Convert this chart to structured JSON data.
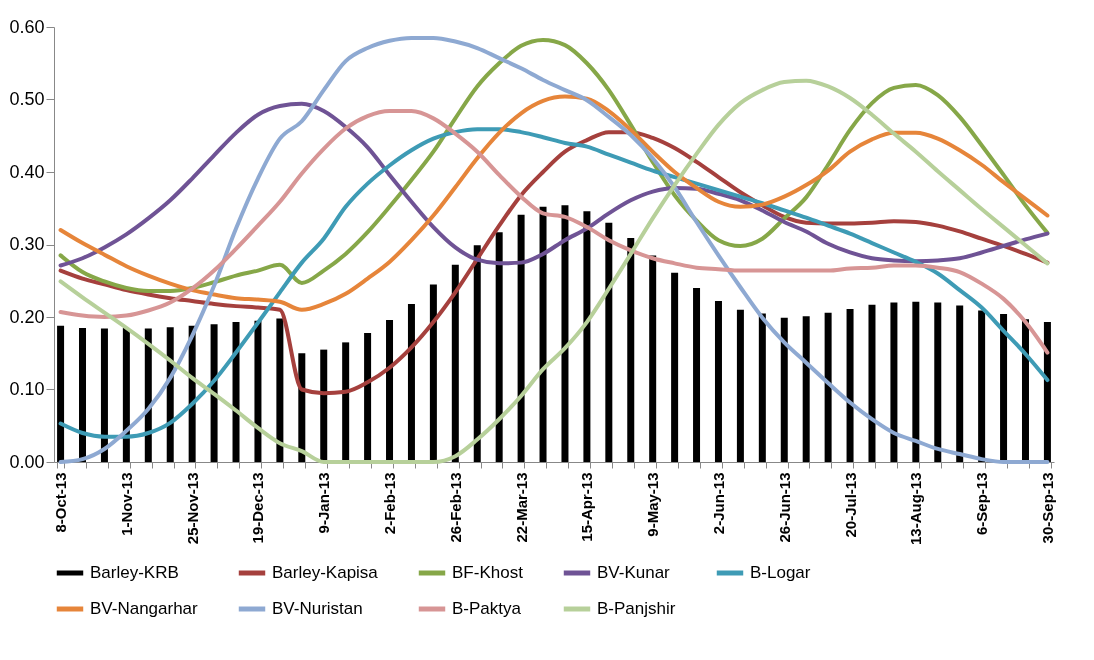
{
  "chart_data": {
    "type": "bar",
    "categories": [
      "8-Oct-13",
      null,
      null,
      "1-Nov-13",
      null,
      null,
      "25-Nov-13",
      null,
      null,
      "19-Dec-13",
      null,
      null,
      "9-Jan-13",
      null,
      null,
      "2-Feb-13",
      null,
      null,
      "26-Feb-13",
      null,
      null,
      "22-Mar-13",
      null,
      null,
      "15-Apr-13",
      null,
      null,
      "9-May-13",
      null,
      null,
      "2-Jun-13",
      null,
      null,
      "26-Jun-13",
      null,
      null,
      "20-Jul-13",
      null,
      null,
      "13-Aug-13",
      null,
      null,
      "6-Sep-13",
      null,
      null,
      "30-Sep-13"
    ],
    "series": [
      {
        "name": "Barley-KRB",
        "type": "bar",
        "color": "#000000",
        "values": [
          0.188,
          0.185,
          0.184,
          0.185,
          0.184,
          0.186,
          0.188,
          0.19,
          0.193,
          0.195,
          0.198,
          0.15,
          0.155,
          0.165,
          0.178,
          0.196,
          0.218,
          0.245,
          0.272,
          0.299,
          0.317,
          0.341,
          0.352,
          0.354,
          0.346,
          0.33,
          0.309,
          0.285,
          0.261,
          0.24,
          0.222,
          0.21,
          0.205,
          0.199,
          0.201,
          0.206,
          0.211,
          0.217,
          0.22,
          0.221,
          0.22,
          0.216,
          0.209,
          0.204,
          0.197,
          0.193
        ]
      },
      {
        "name": "Barley-Kapisa",
        "type": "line",
        "color": "#a5403d",
        "values": [
          0.264,
          0.253,
          0.245,
          0.237,
          0.231,
          0.226,
          0.222,
          0.218,
          0.215,
          0.213,
          0.21,
          0.1,
          0.095,
          0.097,
          0.11,
          0.13,
          0.158,
          0.193,
          0.234,
          0.28,
          0.326,
          0.368,
          0.4,
          0.428,
          0.444,
          0.455,
          0.455,
          0.447,
          0.433,
          0.414,
          0.393,
          0.372,
          0.354,
          0.338,
          0.33,
          0.329,
          0.329,
          0.33,
          0.332,
          0.331,
          0.326,
          0.318,
          0.308,
          0.298,
          0.287,
          0.275
        ]
      },
      {
        "name": "BF-Khost",
        "type": "line",
        "color": "#86a748",
        "values": [
          0.285,
          0.262,
          0.249,
          0.24,
          0.236,
          0.236,
          0.24,
          0.248,
          0.257,
          0.264,
          0.272,
          0.247,
          0.264,
          0.287,
          0.317,
          0.352,
          0.389,
          0.428,
          0.474,
          0.518,
          0.55,
          0.574,
          0.582,
          0.575,
          0.55,
          0.513,
          0.465,
          0.414,
          0.368,
          0.333,
          0.306,
          0.298,
          0.308,
          0.336,
          0.365,
          0.41,
          0.458,
          0.495,
          0.516,
          0.52,
          0.506,
          0.476,
          0.437,
          0.396,
          0.354,
          0.316
        ]
      },
      {
        "name": "BV-Kunar",
        "type": "line",
        "color": "#6f5395",
        "values": [
          0.271,
          0.281,
          0.296,
          0.314,
          0.336,
          0.361,
          0.391,
          0.423,
          0.454,
          0.479,
          0.491,
          0.494,
          0.484,
          0.462,
          0.434,
          0.396,
          0.359,
          0.324,
          0.296,
          0.279,
          0.274,
          0.275,
          0.287,
          0.306,
          0.322,
          0.343,
          0.361,
          0.373,
          0.378,
          0.377,
          0.37,
          0.361,
          0.347,
          0.331,
          0.318,
          0.301,
          0.289,
          0.281,
          0.278,
          0.277,
          0.278,
          0.281,
          0.289,
          0.298,
          0.307,
          0.315
        ]
      },
      {
        "name": "B-Logar",
        "type": "line",
        "color": "#3e9bb5",
        "values": [
          0.053,
          0.04,
          0.035,
          0.035,
          0.04,
          0.054,
          0.08,
          0.112,
          0.151,
          0.192,
          0.234,
          0.275,
          0.308,
          0.352,
          0.384,
          0.409,
          0.43,
          0.446,
          0.455,
          0.459,
          0.459,
          0.455,
          0.448,
          0.44,
          0.435,
          0.424,
          0.413,
          0.402,
          0.393,
          0.384,
          0.375,
          0.366,
          0.357,
          0.347,
          0.337,
          0.326,
          0.315,
          0.302,
          0.289,
          0.276,
          0.26,
          0.237,
          0.213,
          0.181,
          0.149,
          0.113
        ]
      },
      {
        "name": "BV-Nangarhar",
        "type": "line",
        "color": "#e6853a",
        "values": [
          0.32,
          0.302,
          0.286,
          0.27,
          0.257,
          0.246,
          0.237,
          0.231,
          0.226,
          0.224,
          0.221,
          0.21,
          0.218,
          0.232,
          0.253,
          0.276,
          0.306,
          0.34,
          0.379,
          0.419,
          0.454,
          0.481,
          0.498,
          0.504,
          0.501,
          0.484,
          0.458,
          0.428,
          0.4,
          0.378,
          0.359,
          0.352,
          0.355,
          0.366,
          0.382,
          0.402,
          0.428,
          0.445,
          0.454,
          0.454,
          0.446,
          0.43,
          0.41,
          0.386,
          0.363,
          0.34
        ]
      },
      {
        "name": "BV-Nuristan",
        "type": "line",
        "color": "#8ea9d2",
        "values": [
          0.0,
          0.004,
          0.018,
          0.043,
          0.073,
          0.116,
          0.174,
          0.243,
          0.322,
          0.391,
          0.446,
          0.47,
          0.513,
          0.553,
          0.571,
          0.581,
          0.585,
          0.585,
          0.58,
          0.571,
          0.557,
          0.543,
          0.527,
          0.513,
          0.499,
          0.476,
          0.451,
          0.419,
          0.379,
          0.331,
          0.285,
          0.241,
          0.199,
          0.165,
          0.137,
          0.109,
          0.082,
          0.059,
          0.04,
          0.029,
          0.018,
          0.011,
          0.004,
          0.0,
          0.0,
          0.0
        ]
      },
      {
        "name": "B-Paktya",
        "type": "line",
        "color": "#d79595",
        "values": [
          0.207,
          0.202,
          0.2,
          0.202,
          0.209,
          0.22,
          0.239,
          0.264,
          0.294,
          0.326,
          0.359,
          0.398,
          0.432,
          0.46,
          0.477,
          0.484,
          0.484,
          0.474,
          0.453,
          0.428,
          0.396,
          0.366,
          0.343,
          0.338,
          0.324,
          0.306,
          0.292,
          0.281,
          0.274,
          0.268,
          0.266,
          0.264,
          0.264,
          0.264,
          0.264,
          0.264,
          0.267,
          0.268,
          0.271,
          0.271,
          0.268,
          0.262,
          0.246,
          0.225,
          0.193,
          0.151
        ]
      },
      {
        "name": "B-Panjshir",
        "type": "line",
        "color": "#b7d09a",
        "values": [
          0.249,
          0.227,
          0.206,
          0.185,
          0.163,
          0.14,
          0.116,
          0.094,
          0.071,
          0.047,
          0.026,
          0.015,
          0.0,
          0.0,
          0.0,
          0.0,
          0.0,
          0.0,
          0.008,
          0.031,
          0.059,
          0.091,
          0.128,
          0.157,
          0.193,
          0.239,
          0.287,
          0.336,
          0.382,
          0.425,
          0.465,
          0.495,
          0.513,
          0.524,
          0.526,
          0.518,
          0.502,
          0.479,
          0.453,
          0.428,
          0.401,
          0.375,
          0.349,
          0.324,
          0.299,
          0.274
        ]
      }
    ],
    "ylim": [
      0,
      0.6
    ],
    "yticks": [
      {
        "value": 0,
        "label": "0.00"
      },
      {
        "value": 0.1,
        "label": "0.10"
      },
      {
        "value": 0.2,
        "label": "0.20"
      },
      {
        "value": 0.3,
        "label": "0.30"
      },
      {
        "value": 0.4,
        "label": "0.40"
      },
      {
        "value": 0.5,
        "label": "0.50"
      },
      {
        "value": 0.6,
        "label": "0.60"
      }
    ],
    "grid": false,
    "legend": "bottom",
    "marker": "none"
  }
}
